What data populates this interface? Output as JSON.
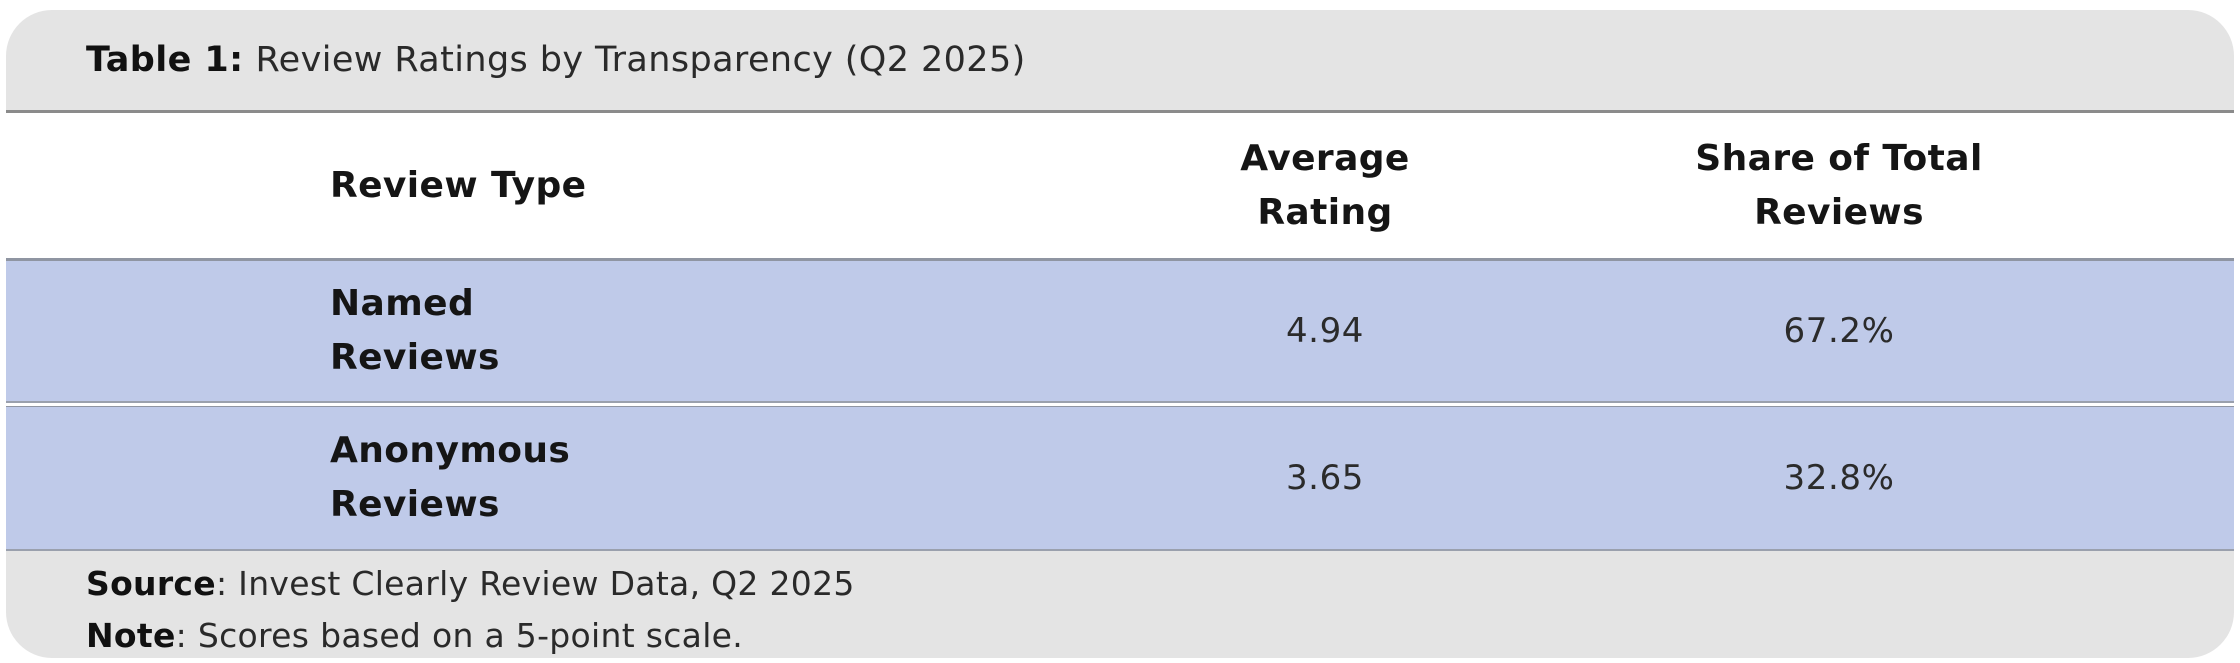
{
  "colors": {
    "row_background": "#bfcae9",
    "bar_background": "#e4e4e4",
    "border_dark": "#8b8b8b",
    "border_row": "#9aa0ad",
    "text": "#1c1c1c"
  },
  "title": {
    "label": "Table 1:",
    "text": "Review Ratings by Transparency (Q2 2025)"
  },
  "table": {
    "columns": [
      "Review Type",
      "Average\nRating",
      "Share of Total\nReviews"
    ],
    "rows": [
      {
        "review_type": "Named\nReviews",
        "average_rating": "4.94",
        "share_of_total": "67.2%"
      },
      {
        "review_type": "Anonymous\nReviews",
        "average_rating": "3.65",
        "share_of_total": "32.8%"
      }
    ]
  },
  "footer": {
    "source_label": "Source",
    "source_text": ": Invest Clearly Review Data, Q2 2025",
    "note_label": "Note",
    "note_text": ": Scores based on a 5-point scale."
  },
  "chart_data": {
    "type": "table",
    "title": "Table 1: Review Ratings by Transparency (Q2 2025)",
    "columns": [
      "Review Type",
      "Average Rating",
      "Share of Total Reviews"
    ],
    "rows": [
      [
        "Named Reviews",
        4.94,
        "67.2%"
      ],
      [
        "Anonymous Reviews",
        3.65,
        "32.8%"
      ]
    ],
    "source": "Invest Clearly Review Data, Q2 2025",
    "note": "Scores based on a 5-point scale.",
    "rating_scale_max": 5
  }
}
